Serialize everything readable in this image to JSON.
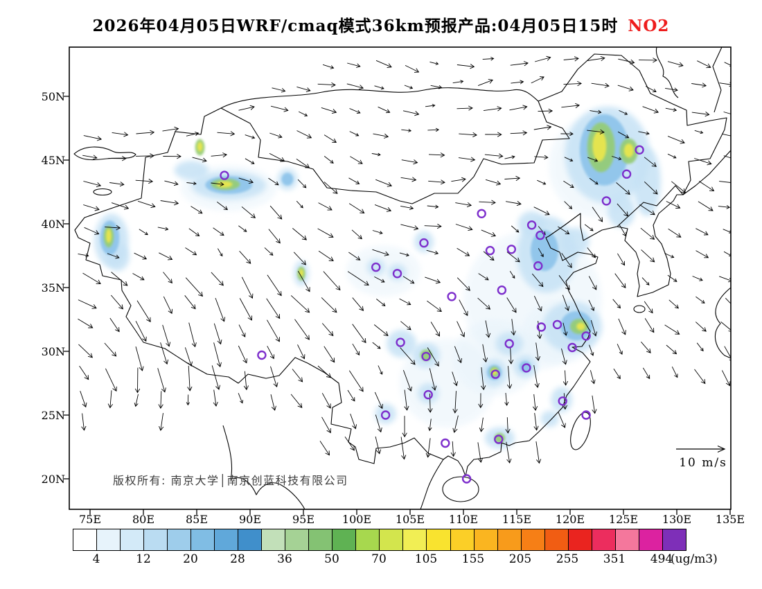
{
  "title": {
    "text": "2026年04月05日WRF/cmaq模式36km预报产品:04月05日15时",
    "pollutant": "NO2",
    "pollutant_color": "#ee1c1c"
  },
  "axes": {
    "lat": [
      "50N",
      "45N",
      "40N",
      "35N",
      "30N",
      "25N",
      "20N"
    ],
    "lon": [
      "75E",
      "80E",
      "85E",
      "90E",
      "95E",
      "100E",
      "105E",
      "110E",
      "115E",
      "120E",
      "125E",
      "130E",
      "135E"
    ]
  },
  "annotations": {
    "copyright": "版权所有: 南京大学│南京创蓝科技有限公司",
    "wind_scale": "10 m/s"
  },
  "colorbar": {
    "labels": [
      "4",
      "12",
      "20",
      "28",
      "36",
      "50",
      "70",
      "105",
      "155",
      "205",
      "255",
      "351",
      "494"
    ],
    "unit": "(ug/m3)",
    "colors": [
      "#ffffff",
      "#e7f3fb",
      "#d3eaf8",
      "#badcf2",
      "#9ecdeb",
      "#80bde4",
      "#60a8da",
      "#408fcb",
      "#c2e0b9",
      "#a5d295",
      "#84c273",
      "#5fb253",
      "#a7d84e",
      "#d3e54d",
      "#f1ee54",
      "#f9e32f",
      "#fbcf27",
      "#fab520",
      "#f89b1b",
      "#f67f16",
      "#f15d13",
      "#ea241f",
      "#ec2d5e",
      "#f4779c",
      "#dc22a0",
      "#7e2fb8"
    ]
  },
  "chart_data": {
    "type": "heatmap",
    "description": "WRF/CMAQ 36km NO2 surface concentration forecast over China with wind vectors",
    "pollutant": "NO2",
    "unit": "ug/m3",
    "forecast_date": "2026-04-05",
    "valid_time": "04-05 15:00",
    "grid_resolution_km": 36,
    "wind_reference_ms": 10,
    "lon_ticks": [
      75,
      80,
      85,
      90,
      95,
      100,
      105,
      110,
      115,
      120,
      125,
      130,
      135
    ],
    "lat_ticks": [
      50,
      45,
      40,
      35,
      30,
      25,
      20
    ],
    "levels": [
      4,
      12,
      20,
      28,
      36,
      50,
      70,
      105,
      155,
      205,
      255,
      351,
      494
    ],
    "level_colors": [
      "#e7f3fb",
      "#c6e2f5",
      "#8cc3ea",
      "#95cc74",
      "#e9e64d"
    ],
    "marker_color": "#7d2ecc",
    "plumes_format": [
      "lon",
      "lat",
      "width_deg",
      "height_deg",
      "intensity_level_1to5"
    ],
    "plumes": [
      [
        116.5,
        34,
        13,
        11,
        1
      ],
      [
        122.5,
        44.5,
        9,
        8,
        1
      ],
      [
        108.5,
        27.5,
        9,
        7,
        1
      ],
      [
        88,
        42.8,
        9,
        3.6,
        1
      ],
      [
        102.5,
        36.3,
        7,
        4,
        1
      ],
      [
        119,
        31.5,
        7,
        5,
        1
      ],
      [
        113,
        29.5,
        8,
        6,
        1
      ],
      [
        123.5,
        45.4,
        8,
        7.6,
        2
      ],
      [
        127.2,
        43.3,
        2.6,
        5.4,
        2
      ],
      [
        124.8,
        41.0,
        2.6,
        2.6,
        2
      ],
      [
        120.5,
        38.6,
        2.6,
        2.2,
        2
      ],
      [
        117.8,
        37.6,
        5.6,
        6,
        2
      ],
      [
        116.4,
        40.0,
        2.6,
        2.0,
        2
      ],
      [
        120.2,
        31.9,
        5.6,
        4.0,
        2
      ],
      [
        114.3,
        30.6,
        2.6,
        1.8,
        2
      ],
      [
        112.9,
        28.3,
        2.4,
        2.2,
        2
      ],
      [
        115.8,
        28.8,
        2.2,
        1.8,
        2
      ],
      [
        104.2,
        30.6,
        2.8,
        2.2,
        2
      ],
      [
        106.5,
        29.7,
        2.6,
        2.0,
        2
      ],
      [
        106.7,
        26.7,
        2.0,
        1.6,
        2
      ],
      [
        102.7,
        25.1,
        2.0,
        1.6,
        2
      ],
      [
        113.4,
        23.2,
        2.8,
        1.7,
        2
      ],
      [
        119.2,
        26.2,
        2.0,
        2.0,
        2
      ],
      [
        118.1,
        24.7,
        1.7,
        1.3,
        2
      ],
      [
        88.0,
        43.0,
        7,
        2.2,
        2
      ],
      [
        93.5,
        43.5,
        1.9,
        1.7,
        2
      ],
      [
        77.0,
        38.7,
        3.2,
        4.2,
        2
      ],
      [
        77.6,
        37.4,
        2.2,
        2.2,
        2
      ],
      [
        94.8,
        36.1,
        1.4,
        2.0,
        2
      ],
      [
        101.8,
        36.6,
        1.7,
        1.3,
        2
      ],
      [
        103.8,
        36.2,
        1.7,
        1.3,
        2
      ],
      [
        106.3,
        38.6,
        1.8,
        1.7,
        2
      ],
      [
        84.5,
        44.2,
        3.2,
        1.5,
        2
      ],
      [
        123.2,
        45.8,
        4.6,
        5.6,
        3
      ],
      [
        117.6,
        37.9,
        2.6,
        3.2,
        3
      ],
      [
        120.6,
        32.0,
        3.0,
        2.3,
        3
      ],
      [
        112.9,
        28.35,
        1.4,
        1.2,
        3
      ],
      [
        88.0,
        43.05,
        4.4,
        1.4,
        3
      ],
      [
        76.85,
        38.9,
        1.8,
        2.7,
        3
      ],
      [
        93.5,
        43.5,
        1.1,
        1.0,
        3
      ],
      [
        115.8,
        28.8,
        1.1,
        0.9,
        3
      ],
      [
        122.9,
        46.0,
        2.6,
        3.9,
        4
      ],
      [
        125.5,
        45.7,
        1.7,
        2.0,
        4
      ],
      [
        120.85,
        31.95,
        1.7,
        1.2,
        4
      ],
      [
        112.9,
        28.4,
        0.85,
        0.8,
        4
      ],
      [
        87.7,
        43.1,
        2.7,
        0.9,
        4
      ],
      [
        76.75,
        39.0,
        0.95,
        1.7,
        4
      ],
      [
        94.8,
        36.1,
        0.75,
        1.1,
        4
      ],
      [
        85.3,
        46.0,
        0.9,
        1.3,
        4
      ],
      [
        106.5,
        29.7,
        1.1,
        0.9,
        4
      ],
      [
        113.4,
        23.2,
        1.0,
        0.8,
        4
      ],
      [
        122.75,
        46.1,
        1.3,
        2.4,
        5
      ],
      [
        125.5,
        45.75,
        0.9,
        1.1,
        5
      ],
      [
        121.0,
        31.95,
        0.8,
        0.6,
        5
      ],
      [
        112.9,
        28.4,
        0.5,
        0.5,
        5
      ],
      [
        87.6,
        43.1,
        1.5,
        0.5,
        5
      ],
      [
        76.75,
        39.05,
        0.5,
        1.1,
        5
      ],
      [
        94.8,
        36.15,
        0.4,
        0.6,
        5
      ],
      [
        85.3,
        46.05,
        0.5,
        0.75,
        5
      ]
    ],
    "cities_format": [
      "lon",
      "lat"
    ],
    "cities": [
      [
        87.6,
        43.8
      ],
      [
        91.1,
        29.7
      ],
      [
        101.8,
        36.6
      ],
      [
        103.8,
        36.1
      ],
      [
        106.3,
        38.5
      ],
      [
        111.7,
        40.8
      ],
      [
        116.4,
        39.9
      ],
      [
        117.2,
        39.1
      ],
      [
        114.5,
        38.0
      ],
      [
        112.5,
        37.9
      ],
      [
        117.0,
        36.7
      ],
      [
        113.6,
        34.8
      ],
      [
        108.9,
        34.3
      ],
      [
        126.5,
        45.8
      ],
      [
        125.3,
        43.9
      ],
      [
        123.4,
        41.8
      ],
      [
        117.3,
        31.9
      ],
      [
        118.8,
        32.1
      ],
      [
        121.5,
        31.2
      ],
      [
        120.2,
        30.3
      ],
      [
        114.3,
        30.6
      ],
      [
        113.0,
        28.2
      ],
      [
        115.9,
        28.7
      ],
      [
        119.3,
        26.1
      ],
      [
        121.5,
        25.0
      ],
      [
        113.3,
        23.1
      ],
      [
        108.3,
        22.8
      ],
      [
        106.7,
        26.6
      ],
      [
        102.7,
        25.0
      ],
      [
        104.1,
        30.7
      ],
      [
        106.5,
        29.6
      ],
      [
        110.3,
        20.0
      ]
    ]
  }
}
